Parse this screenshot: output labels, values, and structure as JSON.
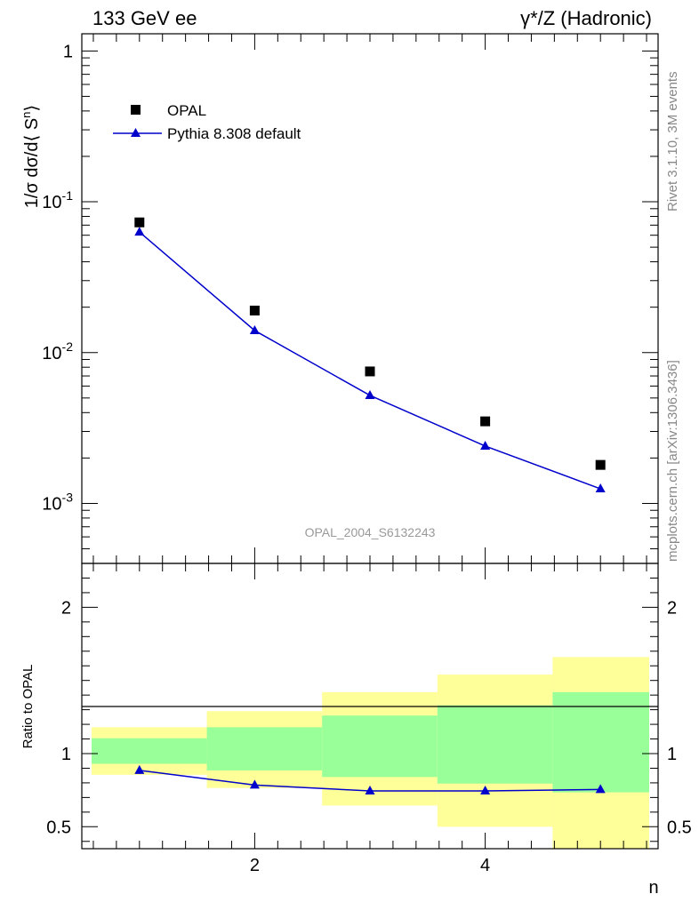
{
  "header": {
    "left": "133 GeV ee",
    "right": "γ*/Z (Hadronic)"
  },
  "side_labels": {
    "rivet": "Rivet 3.1.10,  3M events",
    "mcplots": "mcplots.cern.ch [arXiv:1306.3436]"
  },
  "watermark": "OPAL_2004_S6132243",
  "chart_data": [
    {
      "type": "scatter",
      "panel": "main",
      "ylabel": "1/σ dσ/d⟨ S^n⟩",
      "yscale": "log",
      "xlim": [
        0.5,
        5.5
      ],
      "ylim": [
        0.0004,
        1.3
      ],
      "y_ticks": [
        {
          "value": 1,
          "label": "1"
        },
        {
          "value": 0.1,
          "label": "10^-1"
        },
        {
          "value": 0.01,
          "label": "10^-2"
        },
        {
          "value": 0.001,
          "label": "10^-3"
        }
      ],
      "legend": {
        "position": "top-left"
      },
      "series": [
        {
          "name": "OPAL",
          "marker": "square",
          "color": "#000000",
          "x": [
            1,
            2,
            3,
            4,
            5
          ],
          "y": [
            0.073,
            0.019,
            0.0075,
            0.0035,
            0.0018
          ]
        },
        {
          "name": "Pythia 8.308 default",
          "marker": "triangle",
          "color": "#0000cc",
          "x": [
            1,
            2,
            3,
            4,
            5
          ],
          "y": [
            0.063,
            0.014,
            0.0052,
            0.0024,
            0.00125
          ]
        }
      ]
    },
    {
      "type": "line",
      "panel": "ratio",
      "ylabel": "Ratio to OPAL",
      "xlabel": "n",
      "xlim": [
        0.5,
        5.5
      ],
      "ylim": [
        0.35,
        2.3
      ],
      "x_ticks": [
        {
          "value": 2,
          "label": "2"
        },
        {
          "value": 4,
          "label": "4"
        }
      ],
      "y_ticks": [
        {
          "value": 0.5,
          "label": "0.5"
        },
        {
          "value": 1,
          "label": "1"
        },
        {
          "value": 2,
          "label": "2"
        }
      ],
      "bands": [
        {
          "x0": 0.5,
          "x1": 1.5,
          "yellow": [
            0.855,
            1.18
          ],
          "green": [
            0.93,
            1.105
          ]
        },
        {
          "x0": 1.5,
          "x1": 2.5,
          "yellow": [
            0.765,
            1.29
          ],
          "green": [
            0.885,
            1.18
          ]
        },
        {
          "x0": 2.5,
          "x1": 3.5,
          "yellow": [
            0.645,
            1.42
          ],
          "green": [
            0.84,
            1.26
          ]
        },
        {
          "x0": 3.5,
          "x1": 4.5,
          "yellow": [
            0.5,
            1.54
          ],
          "green": [
            0.795,
            1.33
          ]
        },
        {
          "x0": 4.5,
          "x1": 5.5,
          "yellow": [
            0.35,
            1.66
          ],
          "green": [
            0.735,
            1.42
          ]
        }
      ],
      "series": [
        {
          "name": "Pythia 8.308 default",
          "color": "#0000cc",
          "x": [
            1,
            2,
            3,
            4,
            5
          ],
          "y": [
            0.885,
            0.785,
            0.745,
            0.745,
            0.755
          ]
        }
      ]
    }
  ]
}
